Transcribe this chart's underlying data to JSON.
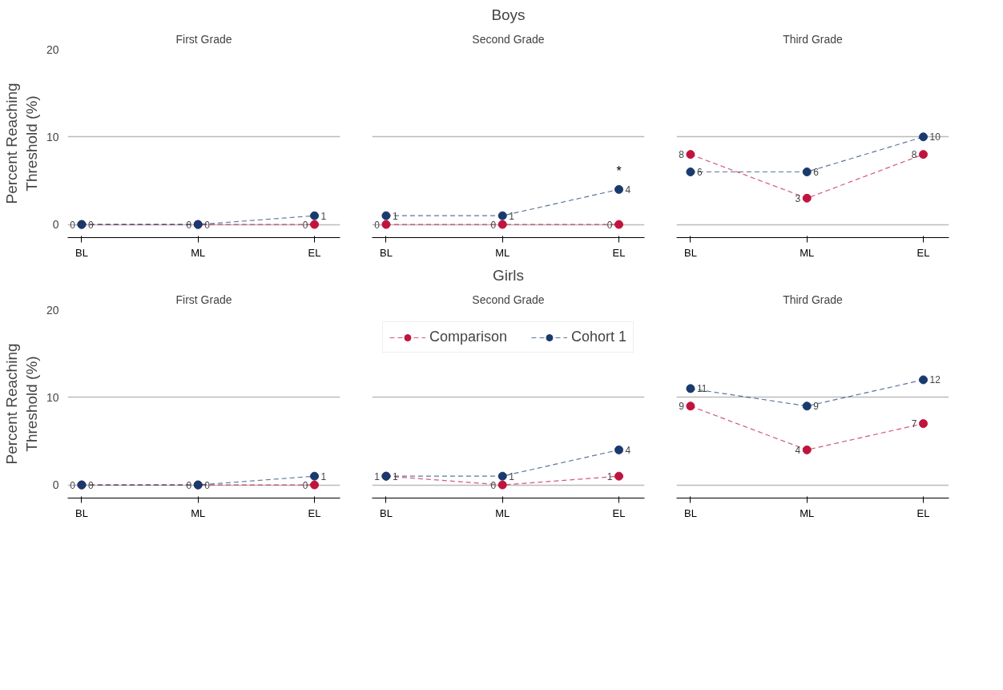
{
  "chart_data": [
    {
      "type": "line",
      "title": "First Grade",
      "ylabel": "Percent Reaching Threshold (%)",
      "categories": [
        "BL",
        "ML",
        "EL"
      ],
      "ylim": [
        -1.5,
        20
      ],
      "yticks": [
        0,
        10,
        20
      ],
      "grid": "y",
      "marker": "circle",
      "line_style": "dashed",
      "data_labels": true,
      "series": [
        {
          "color": "#c0143c",
          "values": [
            0,
            0,
            0
          ]
        },
        {
          "color": "#1a3a6e",
          "values": [
            0,
            0,
            1
          ]
        }
      ]
    },
    {
      "type": "line",
      "title": "Boys",
      "subtitle": "Second Grade",
      "categories": [
        "BL",
        "ML",
        "EL"
      ],
      "ylim": [
        -1.5,
        20
      ],
      "yticks": [
        0,
        10,
        20
      ],
      "grid": "y",
      "marker": "circle",
      "line_style": "dashed",
      "data_labels": true,
      "tick_labels": "x",
      "annotations": [
        {
          "text": "*",
          "x": "EL",
          "y": 4
        }
      ],
      "series": [
        {
          "color": "#c0143c",
          "values": [
            0,
            0,
            0
          ]
        },
        {
          "color": "#1a3a6e",
          "values": [
            1,
            1,
            4
          ]
        }
      ]
    },
    {
      "type": "line",
      "title": "Third Grade",
      "categories": [
        "BL",
        "ML",
        "EL"
      ],
      "ylim": [
        -1.5,
        20
      ],
      "yticks": [
        0,
        10,
        20
      ],
      "grid": "y",
      "marker": "circle",
      "line_style": "dashed",
      "data_labels": true,
      "tick_labels": "x",
      "series": [
        {
          "color": "#c0143c",
          "values": [
            8,
            3,
            8
          ]
        },
        {
          "color": "#1a3a6e",
          "values": [
            6,
            6,
            10
          ]
        }
      ]
    },
    {
      "type": "line",
      "title": "First Grade",
      "ylabel": "Percent Reaching Threshold (%)",
      "categories": [
        "BL",
        "ML",
        "EL"
      ],
      "ylim": [
        -1.5,
        20
      ],
      "yticks": [
        0,
        10,
        20
      ],
      "grid": "y",
      "marker": "circle",
      "line_style": "dashed",
      "data_labels": true,
      "series": [
        {
          "color": "#c0143c",
          "values": [
            0,
            0,
            0
          ]
        },
        {
          "color": "#1a3a6e",
          "values": [
            0,
            0,
            1
          ]
        }
      ]
    },
    {
      "type": "line",
      "title": "Girls",
      "subtitle": "Second Grade",
      "categories": [
        "BL",
        "ML",
        "EL"
      ],
      "ylim": [
        -1.5,
        20
      ],
      "yticks": [
        0,
        10,
        20
      ],
      "grid": "y",
      "marker": "circle",
      "line_style": "dashed",
      "data_labels": true,
      "tick_labels": "x",
      "legend": "top",
      "series": [
        {
          "name": "Comparison",
          "color": "#c0143c",
          "values": [
            1,
            0,
            1
          ]
        },
        {
          "name": "Cohort 1",
          "color": "#1a3a6e",
          "values": [
            1,
            1,
            4
          ]
        }
      ]
    },
    {
      "type": "line",
      "title": "Third Grade",
      "categories": [
        "BL",
        "ML",
        "EL"
      ],
      "ylim": [
        -1.5,
        20
      ],
      "yticks": [
        0,
        10,
        20
      ],
      "grid": "y",
      "marker": "circle",
      "line_style": "dashed",
      "data_labels": true,
      "tick_labels": "x",
      "series": [
        {
          "color": "#c0143c",
          "values": [
            9,
            4,
            7
          ]
        },
        {
          "color": "#1a3a6e",
          "values": [
            11,
            9,
            12
          ]
        }
      ]
    }
  ]
}
